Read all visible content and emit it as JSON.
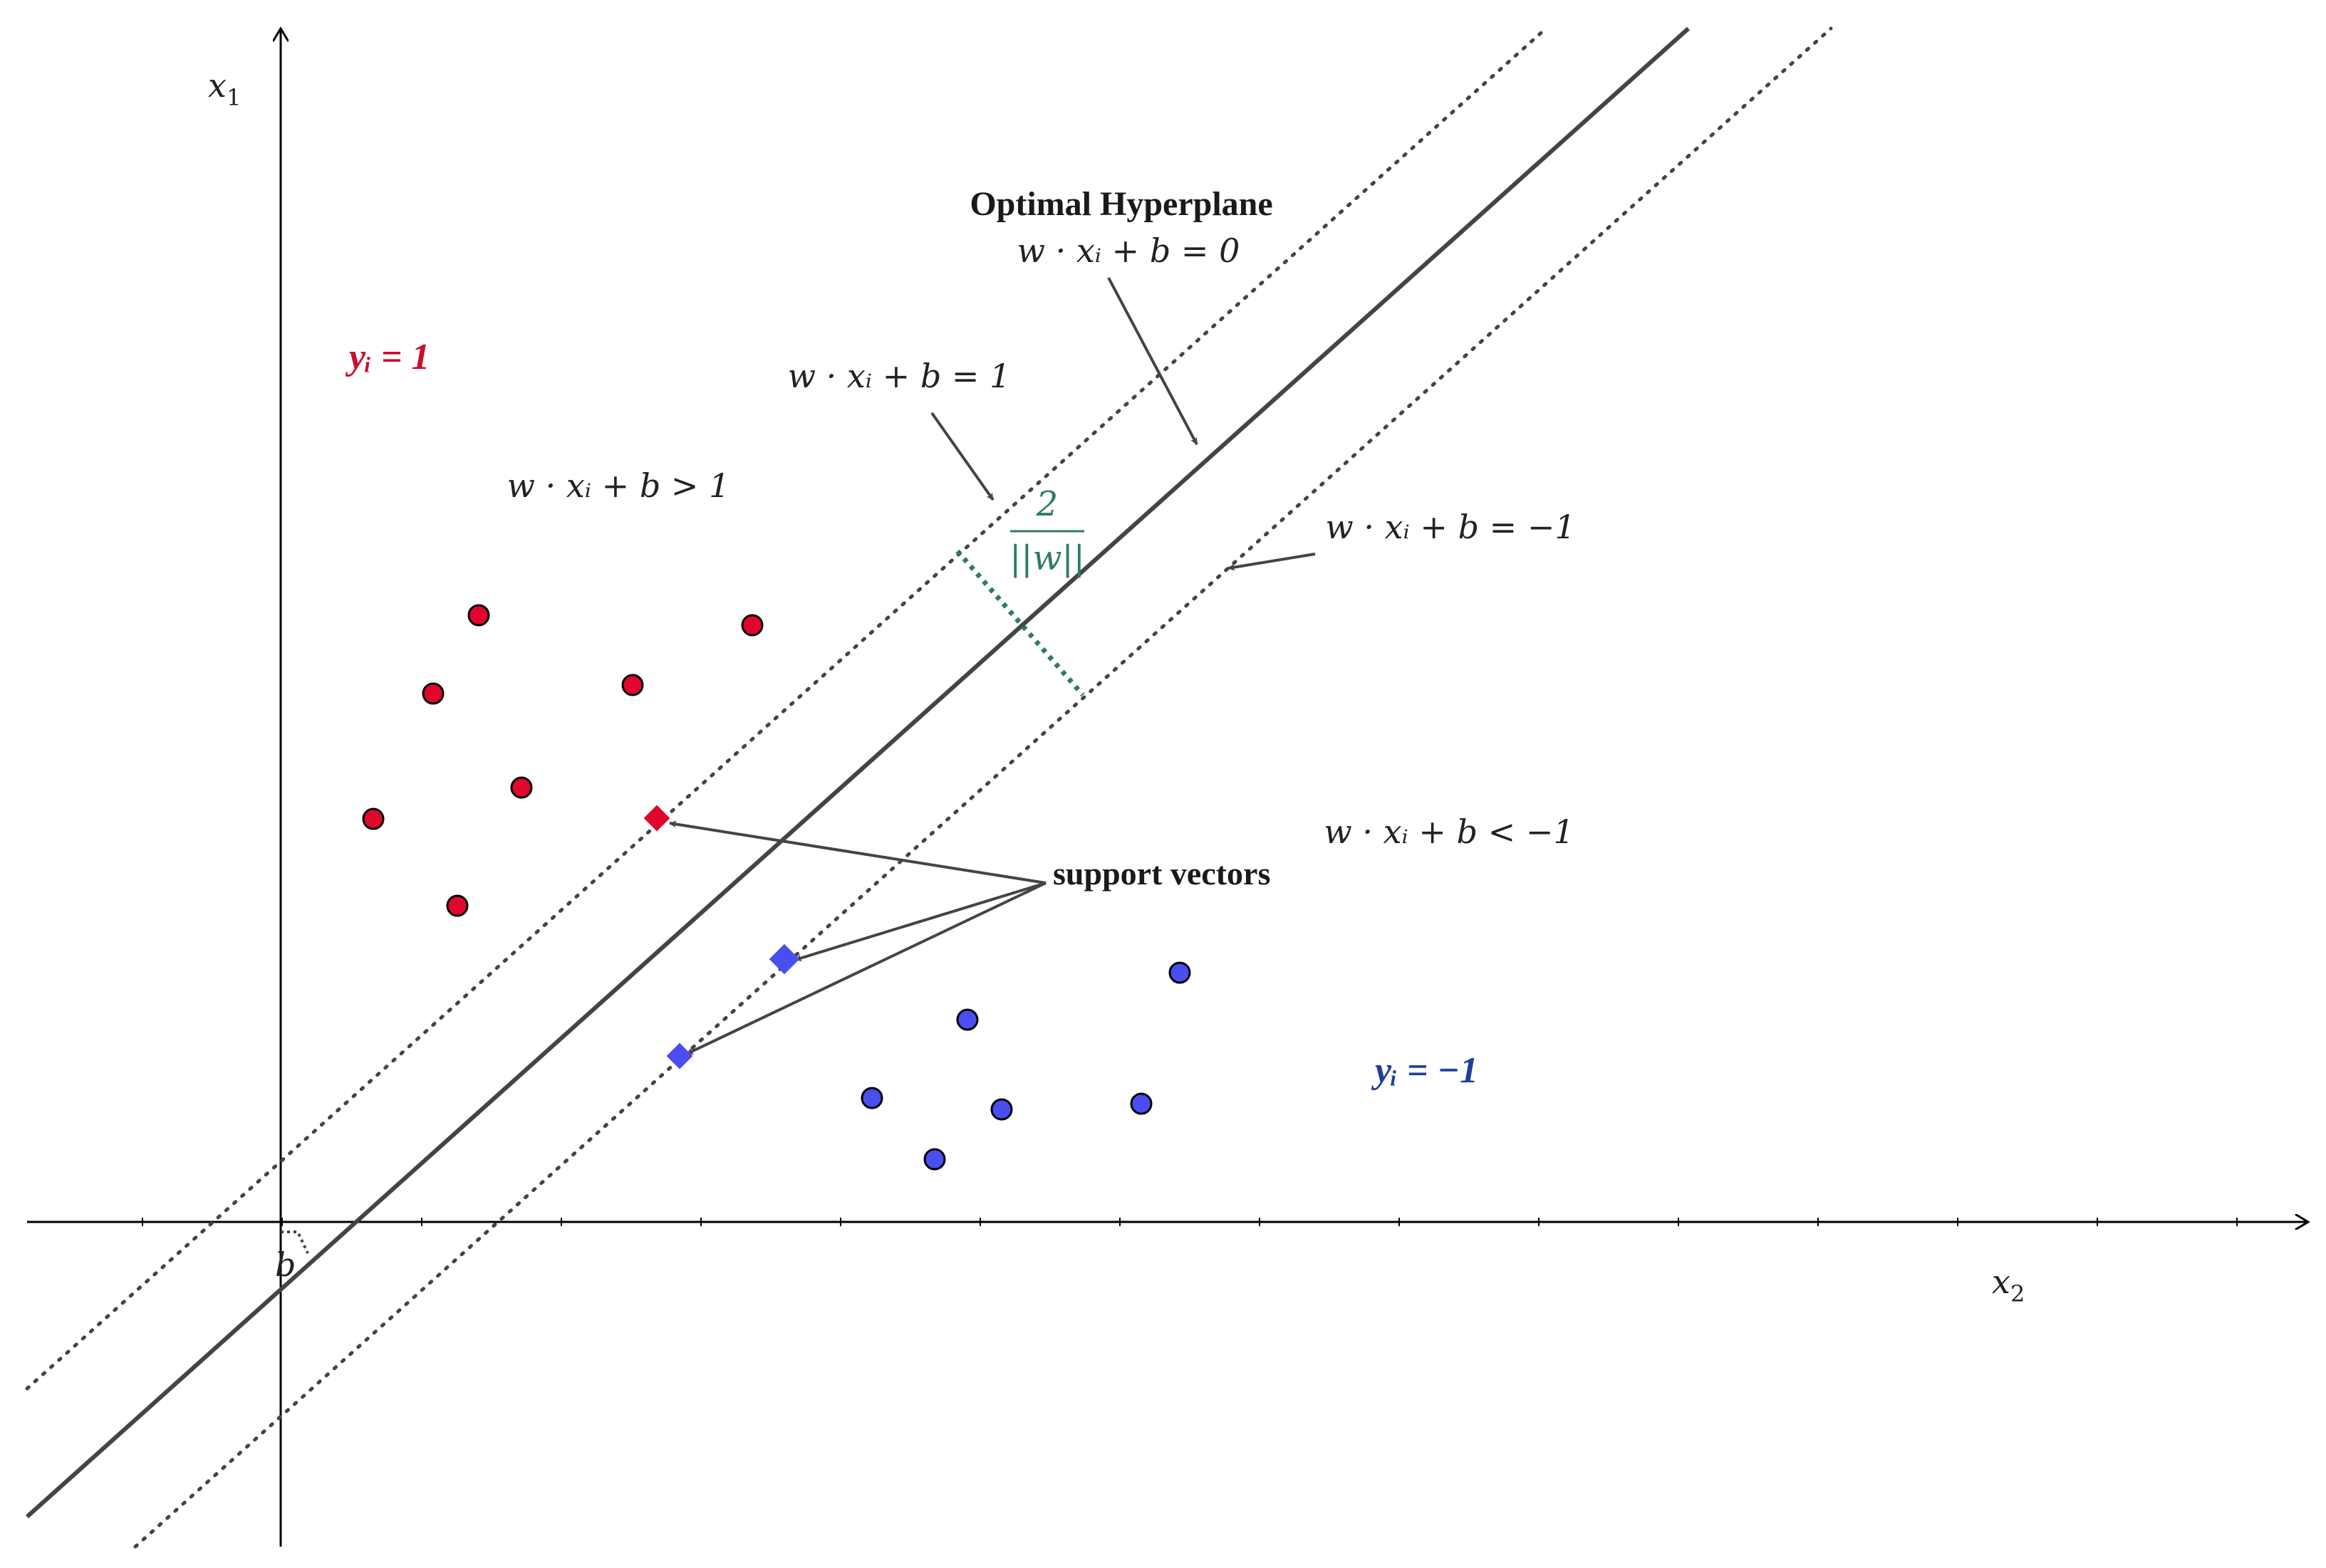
{
  "colors": {
    "positive": "#e0062c",
    "negative": "#4a4ef0",
    "positive_label": "#c8102e",
    "negative_label": "#1f3e9e",
    "margin": "#2e7d5b",
    "line": "#444444",
    "axis": "#000000"
  },
  "axes": {
    "vertical_label": "x",
    "vertical_sub": "1",
    "horizontal_label": "x",
    "horizontal_sub": "2",
    "intercept_label": "b"
  },
  "labels": {
    "optimal_title": "Optimal Hyperplane",
    "eq_zero": "w · xᵢ + b = 0",
    "eq_plus": "w · xᵢ + b = 1",
    "eq_minus": "w · xᵢ + b = −1",
    "ineq_plus": "w · xᵢ + b > 1",
    "ineq_minus": "w · xᵢ + b < −1",
    "support_vectors": "support vectors",
    "class_pos": "yᵢ = 1",
    "class_neg": "yᵢ = −1",
    "margin_num": "2",
    "margin_den": "||w||"
  }
}
